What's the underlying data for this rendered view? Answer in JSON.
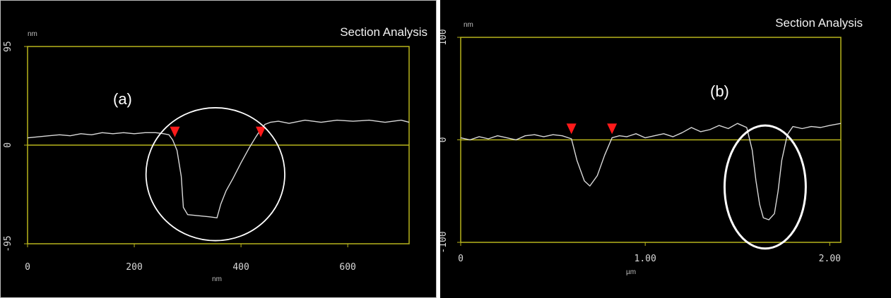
{
  "colors": {
    "background": "#000000",
    "frame": "#b7b41c",
    "trace": "#d9d9d9",
    "marker": "#ff1a1a",
    "annotation": "#ffffff"
  },
  "chart_data": [
    {
      "type": "line",
      "panel_label": "(a)",
      "title": "Section Analysis",
      "ylabel": "nm",
      "xlabel": "nm",
      "xlim": [
        0,
        715
      ],
      "ylim": [
        -95,
        95
      ],
      "x_ticks": [
        0,
        200,
        400,
        600
      ],
      "x_tick_labels": [
        "0",
        "200",
        "400",
        "600"
      ],
      "y_ticks": [
        95,
        0,
        -95
      ],
      "y_tick_labels": [
        "95",
        "0",
        "-95"
      ],
      "grid": false,
      "zero_line": true,
      "markers": [
        {
          "x": 276,
          "y": 9
        },
        {
          "x": 437,
          "y": 9
        }
      ],
      "annotation": {
        "shape": "circle",
        "center_x": 352,
        "center_y": -28,
        "radius_x": 130,
        "radius_y": 64
      },
      "series": [
        {
          "x": [
            0,
            20,
            40,
            60,
            80,
            100,
            120,
            140,
            160,
            180,
            200,
            220,
            240,
            255,
            265,
            272,
            280,
            288,
            292,
            300,
            320,
            340,
            355,
            362,
            372,
            385,
            400,
            415,
            428,
            437,
            445,
            455,
            470,
            490,
            520,
            550,
            580,
            610,
            640,
            670,
            700,
            715
          ],
          "y": [
            7,
            8,
            9,
            10,
            9,
            11,
            10,
            12,
            11,
            12,
            11,
            12,
            12,
            11,
            10,
            5,
            -5,
            -30,
            -60,
            -67,
            -68,
            -69,
            -70,
            -57,
            -44,
            -32,
            -17,
            -3,
            8,
            15,
            20,
            22,
            23,
            21,
            24,
            22,
            24,
            23,
            24,
            22,
            24,
            22
          ]
        }
      ]
    },
    {
      "type": "line",
      "panel_label": "(b)",
      "title": "Section Analysis",
      "ylabel": "nm",
      "xlabel": "µm",
      "xlim": [
        0,
        2.06
      ],
      "ylim": [
        -100,
        100
      ],
      "x_ticks": [
        0,
        1.0,
        2.0
      ],
      "x_tick_labels": [
        "0",
        "1.00",
        "2.00"
      ],
      "y_ticks": [
        100,
        0,
        -100
      ],
      "y_tick_labels": [
        "100",
        "0",
        "-100"
      ],
      "grid": false,
      "zero_line": true,
      "markers": [
        {
          "x": 0.6,
          "y": 7
        },
        {
          "x": 0.82,
          "y": 7
        }
      ],
      "annotation": {
        "shape": "ellipse",
        "center_x": 1.65,
        "center_y": -46,
        "radius_x": 0.22,
        "radius_y": 60
      },
      "series": [
        {
          "x": [
            0,
            0.05,
            0.1,
            0.15,
            0.2,
            0.25,
            0.3,
            0.35,
            0.4,
            0.45,
            0.5,
            0.55,
            0.6,
            0.63,
            0.67,
            0.7,
            0.74,
            0.78,
            0.82,
            0.86,
            0.9,
            0.95,
            1.0,
            1.05,
            1.1,
            1.15,
            1.2,
            1.25,
            1.3,
            1.35,
            1.4,
            1.45,
            1.5,
            1.55,
            1.58,
            1.6,
            1.62,
            1.64,
            1.67,
            1.7,
            1.72,
            1.74,
            1.77,
            1.8,
            1.85,
            1.9,
            1.95,
            2.0,
            2.06
          ],
          "y": [
            2,
            0,
            3,
            1,
            4,
            2,
            0,
            4,
            5,
            3,
            5,
            4,
            1,
            -20,
            -40,
            -45,
            -35,
            -15,
            2,
            4,
            3,
            6,
            2,
            4,
            6,
            3,
            7,
            12,
            8,
            10,
            14,
            11,
            16,
            12,
            -10,
            -40,
            -63,
            -76,
            -78,
            -72,
            -50,
            -20,
            5,
            13,
            11,
            13,
            12,
            14,
            16
          ]
        }
      ]
    }
  ]
}
